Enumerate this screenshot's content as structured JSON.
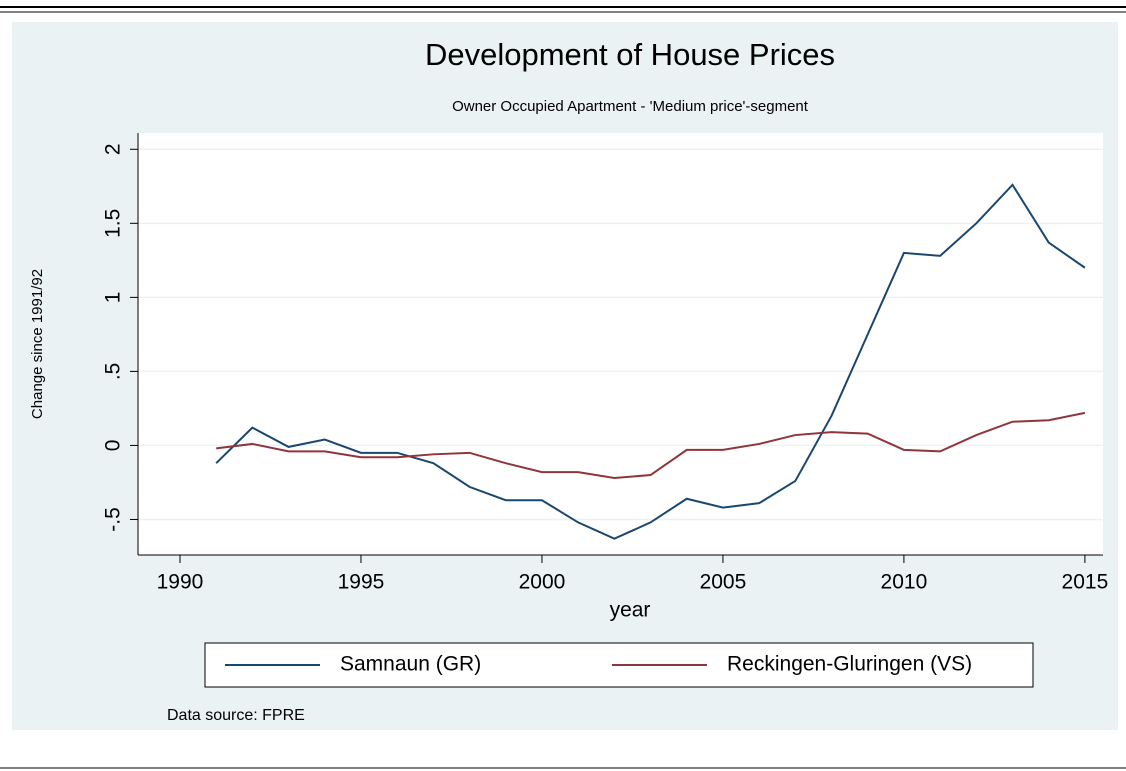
{
  "chart_data": {
    "type": "line",
    "title": "Development of House Prices",
    "subtitle": "Owner Occupied Apartment - 'Medium price'-segment",
    "x_label": "year",
    "y_label": "Change since 1991/92",
    "note": "Data source: FPRE",
    "x": [
      1991,
      1992,
      1993,
      1994,
      1995,
      1996,
      1997,
      1998,
      1999,
      2000,
      2001,
      2002,
      2003,
      2004,
      2005,
      2006,
      2007,
      2008,
      2009,
      2010,
      2011,
      2012,
      2013,
      2014,
      2015
    ],
    "series": [
      {
        "name": "Samnaun (GR)",
        "color": "#1a476f",
        "values": [
          -0.12,
          0.12,
          -0.01,
          0.04,
          -0.05,
          -0.05,
          -0.12,
          -0.28,
          -0.37,
          -0.37,
          -0.52,
          -0.63,
          -0.52,
          -0.36,
          -0.42,
          -0.39,
          -0.24,
          0.2,
          0.75,
          1.3,
          1.28,
          1.5,
          1.76,
          1.37,
          1.2
        ]
      },
      {
        "name": "Reckingen-Gluringen (VS)",
        "color": "#90353b",
        "values": [
          -0.02,
          0.01,
          -0.04,
          -0.04,
          -0.08,
          -0.08,
          -0.06,
          -0.05,
          -0.12,
          -0.18,
          -0.18,
          -0.22,
          -0.2,
          -0.03,
          -0.03,
          0.01,
          0.07,
          0.09,
          0.08,
          -0.03,
          -0.04,
          0.07,
          0.16,
          0.17,
          0.22
        ]
      }
    ],
    "xlim": [
      1988.84,
      2015.5
    ],
    "xticks": [
      1990,
      1995,
      2000,
      2005,
      2010,
      2015
    ],
    "ylim": [
      -0.74,
      2.11
    ],
    "yticks": [
      {
        "value": -0.5,
        "label": "-.5"
      },
      0,
      {
        "value": 0.5,
        "label": ".5"
      },
      1,
      1.5,
      2
    ],
    "grid": true,
    "legend": "bottom"
  }
}
